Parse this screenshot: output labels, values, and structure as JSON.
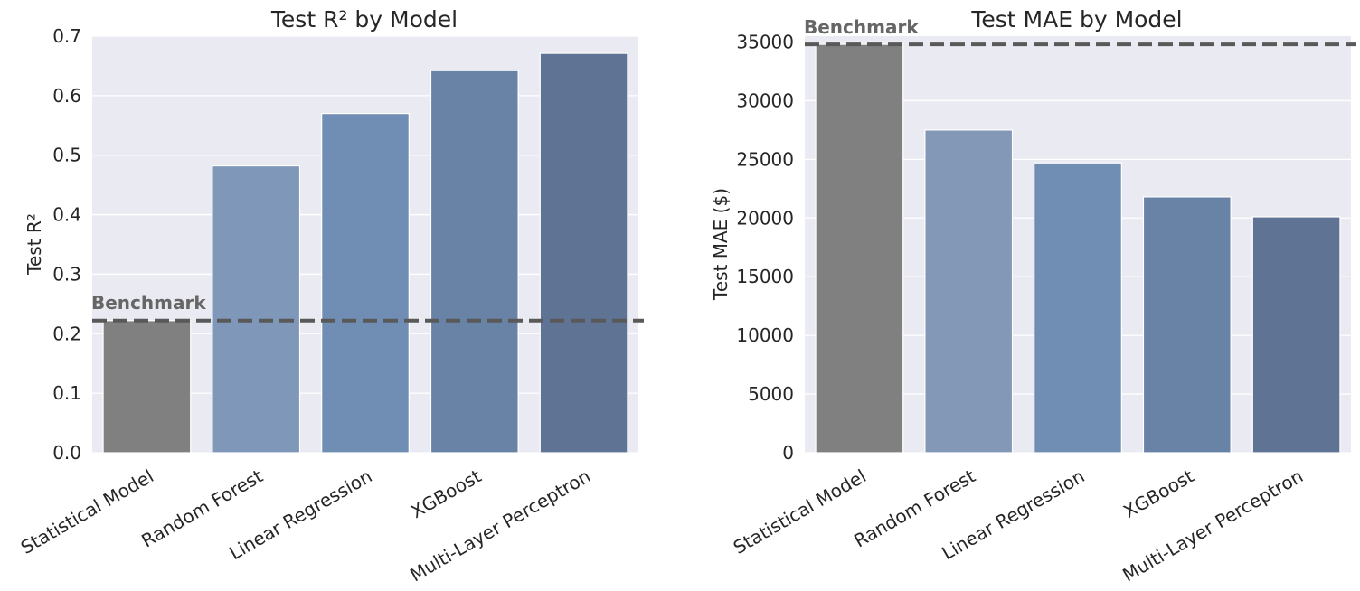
{
  "chart_data": [
    {
      "type": "bar",
      "title": "Test R² by Model",
      "xlabel": "",
      "ylabel": "Test R²",
      "categories": [
        "Statistical Model",
        "Random Forest",
        "Linear Regression",
        "XGBoost",
        "Multi-Layer Perceptron"
      ],
      "values": [
        0.222,
        0.482,
        0.57,
        0.642,
        0.671
      ],
      "ylim": [
        0,
        0.7
      ],
      "yticks": [
        "0.0",
        "0.1",
        "0.2",
        "0.3",
        "0.4",
        "0.5",
        "0.6",
        "0.7"
      ],
      "grid": true,
      "bar_colors": [
        "#808080",
        "#7f97b9",
        "#708db3",
        "#6983a6",
        "#5f7395"
      ],
      "benchmark": {
        "label": "Benchmark",
        "value": 0.222,
        "color": "#595959"
      },
      "background": "#eaeaf2"
    },
    {
      "type": "bar",
      "title": "Test MAE by Model",
      "xlabel": "",
      "ylabel": "Test MAE ($)",
      "categories": [
        "Statistical Model",
        "Random Forest",
        "Linear Regression",
        "XGBoost",
        "Multi-Layer Perceptron"
      ],
      "values": [
        34800,
        27500,
        24700,
        21800,
        20100
      ],
      "ylim": [
        0,
        35500
      ],
      "yticks": [
        "0",
        "5000",
        "10000",
        "15000",
        "20000",
        "25000",
        "30000",
        "35000"
      ],
      "grid": true,
      "bar_colors": [
        "#808080",
        "#8398b7",
        "#708db3",
        "#6983a6",
        "#5f7395"
      ],
      "benchmark": {
        "label": "Benchmark",
        "value": 34800,
        "color": "#595959"
      },
      "background": "#eaeaf2"
    }
  ]
}
